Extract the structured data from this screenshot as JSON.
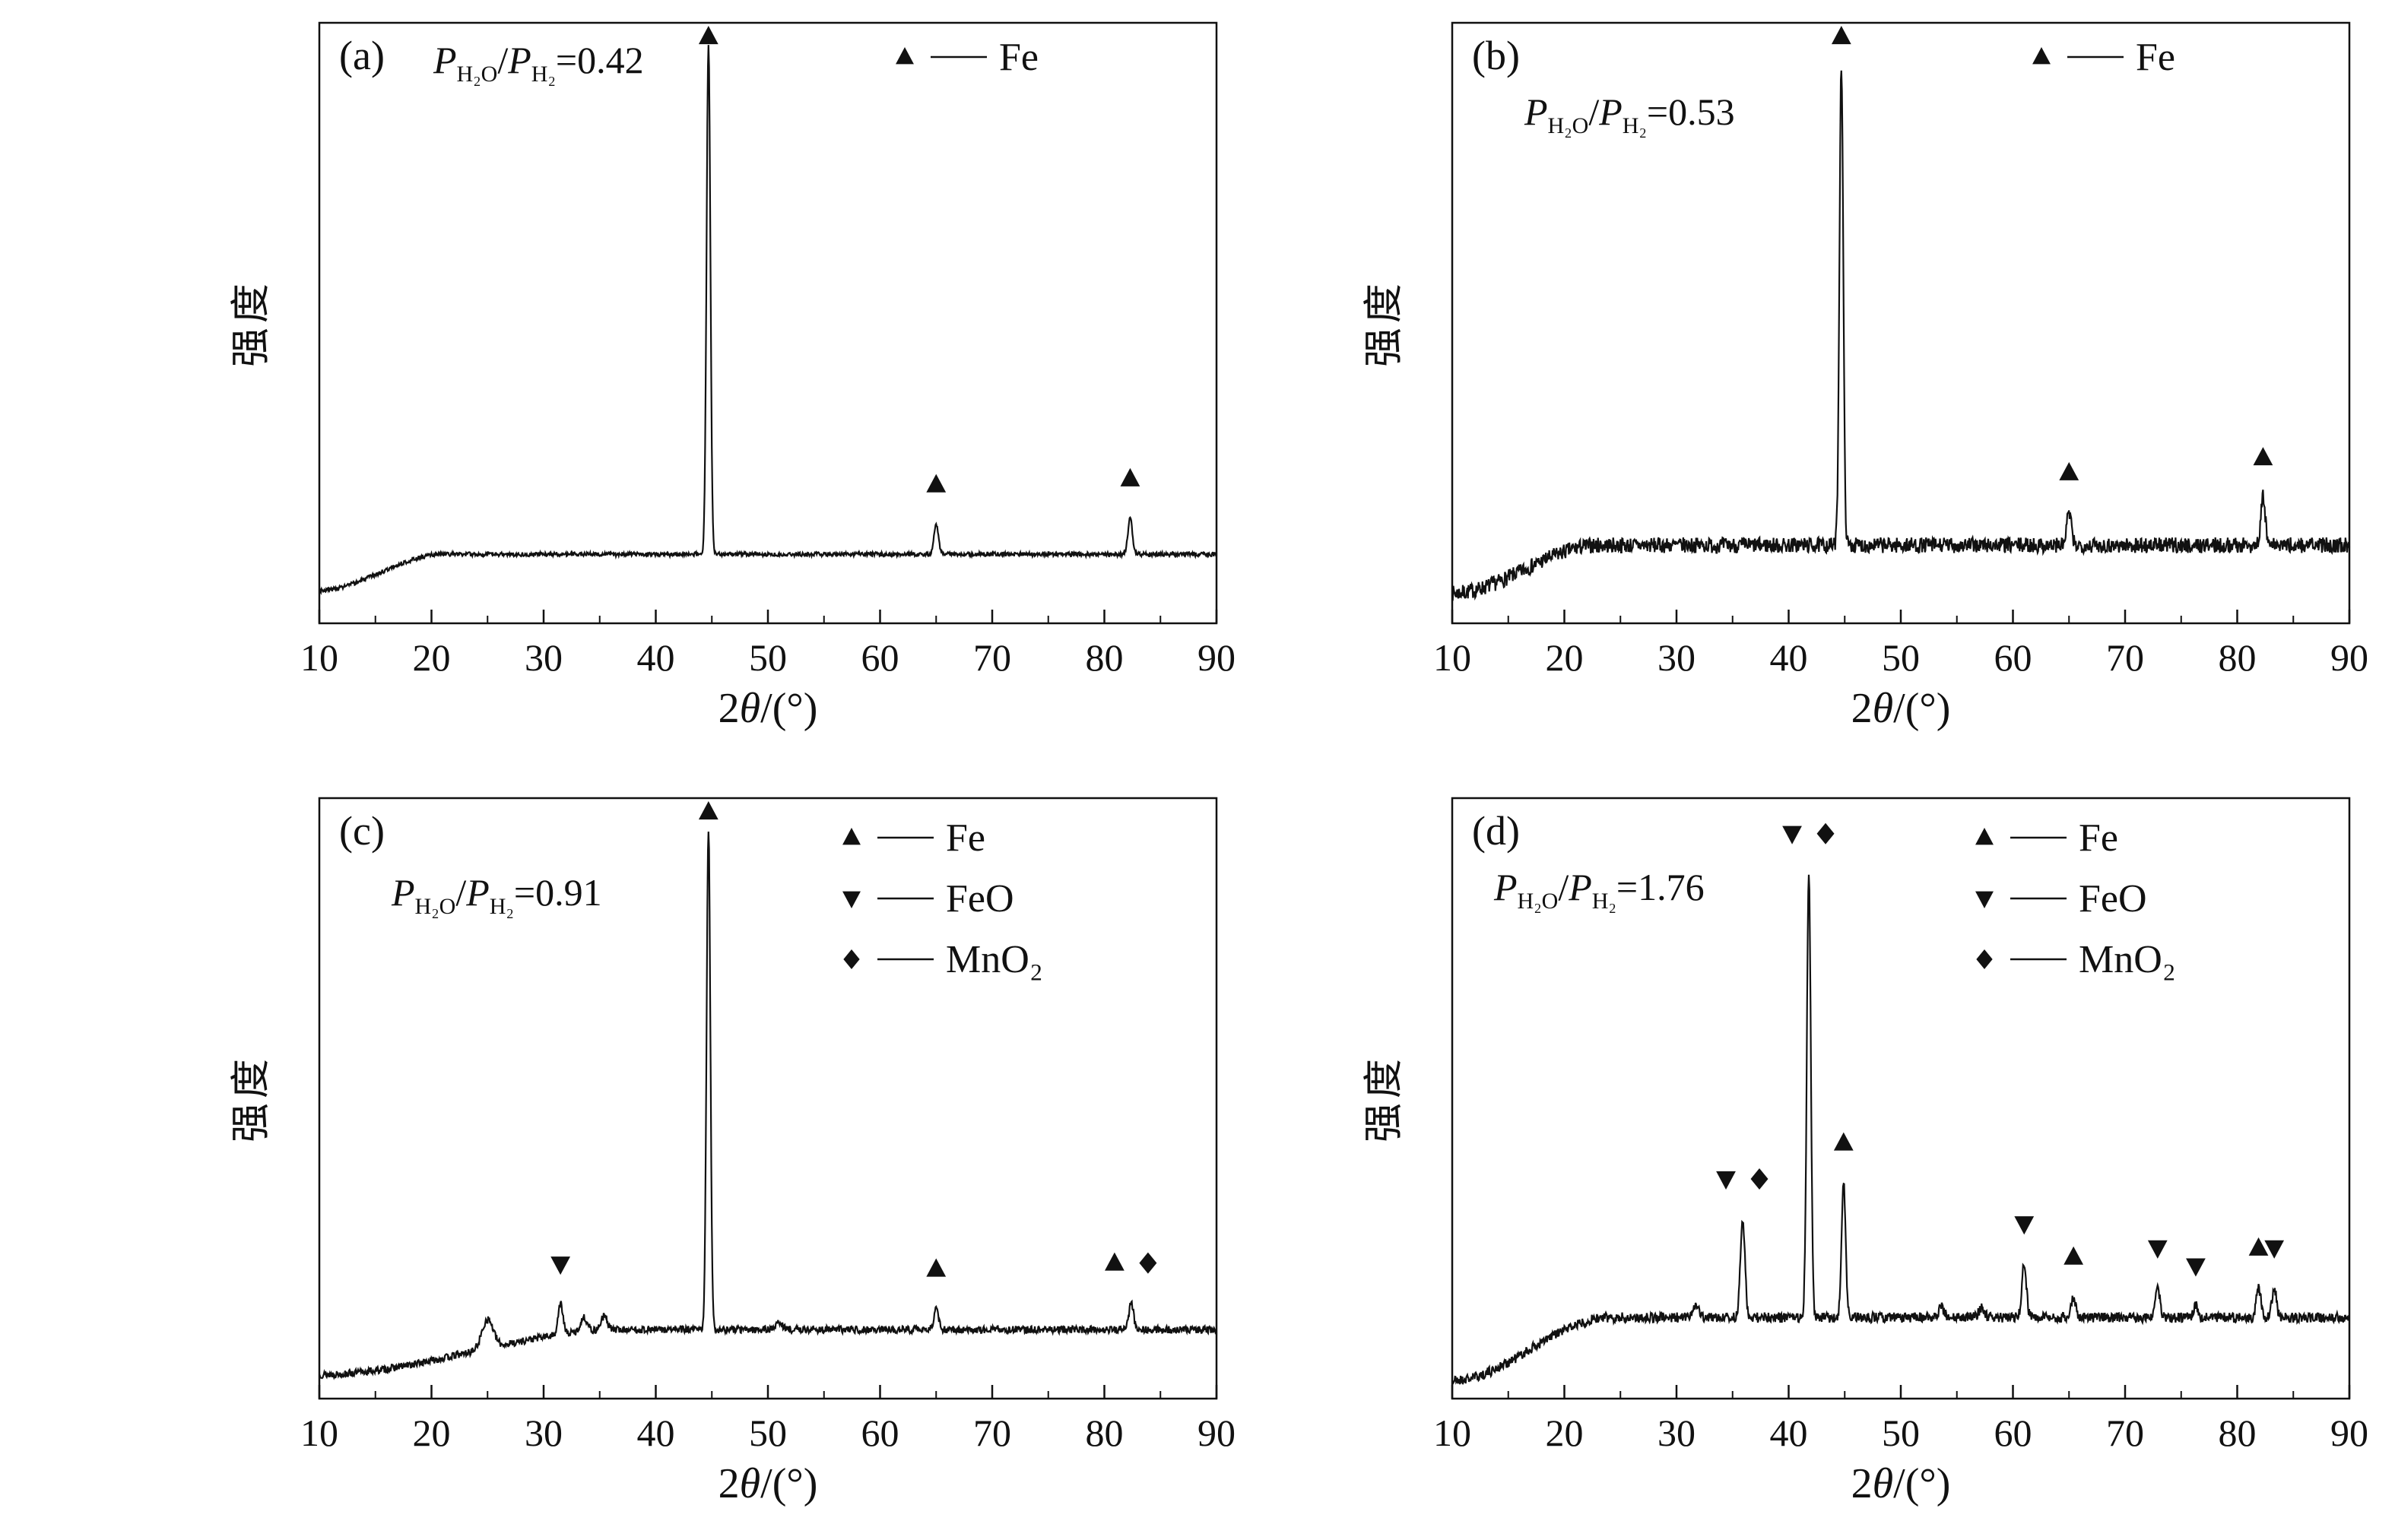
{
  "colors": {
    "foreground": "#111111",
    "background": "#ffffff"
  },
  "axis": {
    "ylabel": "强度",
    "xlabel": "2θ/(°)",
    "xlabel_parts": {
      "prefix": "2",
      "theta": "θ",
      "suffix": "/(°)"
    },
    "xlim": [
      10,
      90
    ],
    "x_ticks": [
      10,
      20,
      30,
      40,
      50,
      60,
      70,
      80,
      90
    ]
  },
  "species": {
    "Fe": {
      "glyph": "triangle-up",
      "label": "Fe"
    },
    "FeO": {
      "glyph": "triangle-down",
      "label": "FeO"
    },
    "MnO2": {
      "glyph": "diamond",
      "label": "MnO₂"
    }
  },
  "chart_data": [
    {
      "id": "a",
      "type": "line",
      "panel_label": "(a)",
      "ratio": {
        "symbol": "P",
        "numerator": "H₂O",
        "sep": "/",
        "denominator": "H₂",
        "equals": "=",
        "value": "0.42"
      },
      "ratio_offset": [
        150,
        20
      ],
      "xlim": [
        10,
        90
      ],
      "xlabel": "2θ/(°)",
      "ylabel": "强度",
      "legend": [
        "Fe"
      ],
      "legend_pos": {
        "x": 770,
        "y": 45,
        "row_gap": 80
      },
      "baseline": {
        "start": 0.055,
        "plateau": 0.115,
        "rise_start": 10,
        "rise_end": 21,
        "noise": 0.0035,
        "seed": 3
      },
      "peaks": [
        {
          "x": 44.7,
          "apex": 0.965,
          "sigma": 0.17,
          "species": [
            "Fe"
          ]
        },
        {
          "x": 65.0,
          "apex": 0.165,
          "sigma": 0.2,
          "species": [
            "Fe"
          ]
        },
        {
          "x": 82.3,
          "apex": 0.175,
          "sigma": 0.2,
          "species": [
            "Fe"
          ]
        }
      ]
    },
    {
      "id": "b",
      "type": "line",
      "panel_label": "(b)",
      "ratio": {
        "symbol": "P",
        "numerator": "H₂O",
        "sep": "/",
        "denominator": "H₂",
        "equals": "=",
        "value": "0.53"
      },
      "ratio_offset": [
        95,
        88
      ],
      "xlim": [
        10,
        90
      ],
      "xlabel": "2θ/(°)",
      "ylabel": "强度",
      "legend": [
        "Fe"
      ],
      "legend_pos": {
        "x": 775,
        "y": 45,
        "row_gap": 80
      },
      "baseline": {
        "start": 0.05,
        "plateau": 0.13,
        "rise_start": 10,
        "rise_end": 23,
        "noise": 0.013,
        "seed": 7
      },
      "peaks": [
        {
          "x": 44.7,
          "apex": 0.93,
          "sigma": 0.17,
          "species": [
            "Fe"
          ]
        },
        {
          "x": 65.0,
          "apex": 0.185,
          "sigma": 0.2,
          "species": [
            "Fe"
          ]
        },
        {
          "x": 82.3,
          "apex": 0.21,
          "sigma": 0.2,
          "species": [
            "Fe"
          ]
        }
      ]
    },
    {
      "id": "c",
      "type": "line",
      "panel_label": "(c)",
      "ratio": {
        "symbol": "P",
        "numerator": "H₂O",
        "sep": "/",
        "denominator": "H₂",
        "equals": "=",
        "value": "0.91"
      },
      "ratio_offset": [
        95,
        95
      ],
      "xlim": [
        10,
        90
      ],
      "xlabel": "2θ/(°)",
      "ylabel": "强度",
      "legend": [
        "Fe",
        "FeO",
        "MnO2"
      ],
      "legend_pos": {
        "x": 700,
        "y": 52,
        "row_gap": 80
      },
      "baseline": {
        "start": 0.04,
        "plateau": 0.115,
        "rise_start": 10,
        "rise_end": 37,
        "noise": 0.006,
        "seed": 13
      },
      "peaks": [
        {
          "x": 25.0,
          "apex": 0.132,
          "sigma": 0.5,
          "species": []
        },
        {
          "x": 31.5,
          "apex": 0.158,
          "sigma": 0.22,
          "species": [
            "FeO"
          ]
        },
        {
          "x": 33.6,
          "apex": 0.135,
          "sigma": 0.3,
          "species": []
        },
        {
          "x": 35.4,
          "apex": 0.137,
          "sigma": 0.3,
          "species": []
        },
        {
          "x": 44.7,
          "apex": 0.945,
          "sigma": 0.17,
          "species": [
            "Fe"
          ]
        },
        {
          "x": 51.0,
          "apex": 0.127,
          "sigma": 0.3,
          "species": []
        },
        {
          "x": 65.0,
          "apex": 0.15,
          "sigma": 0.2,
          "species": [
            "Fe"
          ]
        },
        {
          "x": 82.4,
          "apex": 0.16,
          "sigma": 0.2,
          "species": [
            "Fe",
            "MnO2"
          ]
        }
      ]
    },
    {
      "id": "d",
      "type": "line",
      "panel_label": "(d)",
      "ratio": {
        "symbol": "P",
        "numerator": "H₂O",
        "sep": "/",
        "denominator": "H₂",
        "equals": "=",
        "value": "1.76"
      },
      "ratio_offset": [
        55,
        88
      ],
      "xlim": [
        10,
        90
      ],
      "xlabel": "2θ/(°)",
      "ylabel": "强度",
      "legend": [
        "Fe",
        "FeO",
        "MnO2"
      ],
      "legend_pos": {
        "x": 700,
        "y": 52,
        "row_gap": 80
      },
      "baseline": {
        "start": 0.03,
        "plateau": 0.135,
        "rise_start": 10,
        "rise_end": 24,
        "noise": 0.0085,
        "seed": 21
      },
      "peaks": [
        {
          "x": 31.7,
          "apex": 0.158,
          "sigma": 0.25,
          "species": []
        },
        {
          "x": 35.9,
          "apex": 0.3,
          "sigma": 0.2,
          "species": [
            "FeO",
            "MnO2"
          ]
        },
        {
          "x": 41.8,
          "apex": 0.875,
          "sigma": 0.18,
          "species": [
            "FeO",
            "MnO2"
          ]
        },
        {
          "x": 44.9,
          "apex": 0.36,
          "sigma": 0.18,
          "species": [
            "Fe"
          ]
        },
        {
          "x": 53.6,
          "apex": 0.152,
          "sigma": 0.25,
          "species": []
        },
        {
          "x": 57.2,
          "apex": 0.15,
          "sigma": 0.25,
          "species": []
        },
        {
          "x": 61.0,
          "apex": 0.225,
          "sigma": 0.2,
          "species": [
            "FeO"
          ]
        },
        {
          "x": 65.4,
          "apex": 0.17,
          "sigma": 0.2,
          "species": [
            "Fe"
          ]
        },
        {
          "x": 72.9,
          "apex": 0.185,
          "sigma": 0.2,
          "species": [
            "FeO"
          ]
        },
        {
          "x": 76.3,
          "apex": 0.155,
          "sigma": 0.2,
          "species": [
            "FeO"
          ]
        },
        {
          "x": 81.9,
          "apex": 0.185,
          "sigma": 0.2,
          "species": [
            "Fe"
          ]
        },
        {
          "x": 83.3,
          "apex": 0.185,
          "sigma": 0.2,
          "species": [
            "FeO"
          ]
        }
      ]
    }
  ]
}
